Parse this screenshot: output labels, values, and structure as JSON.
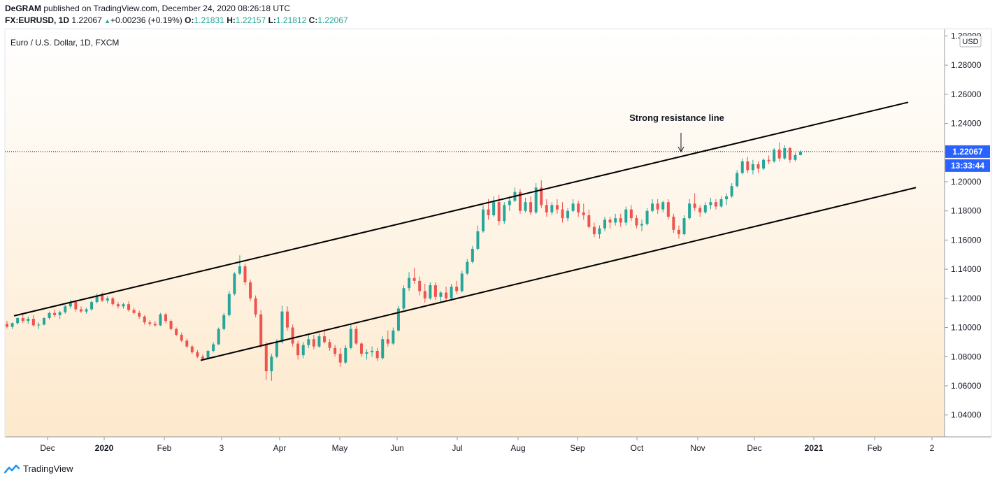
{
  "header": {
    "author": "DeGRAM",
    "published": "published on TradingView.com, December 24, 2020 08:26:18 UTC",
    "symbol": "FX:EURUSD, 1D",
    "last": "1.22067",
    "change_arrow": "▲",
    "change": "+0.00236 (+0.19%)",
    "o_label": "O:",
    "o_value": "1.21831",
    "h_label": "H:",
    "h_value": "1.22157",
    "l_label": "L:",
    "l_value": "1.21812",
    "c_label": "C:",
    "c_value": "1.22067"
  },
  "footer": {
    "brand": "TradingView",
    "logo_icon": "tradingview-logo-icon"
  },
  "colors": {
    "up": "#26a69a",
    "down": "#ef5350",
    "line": "#000000",
    "price_badge": "#2962ff"
  },
  "chart_data": {
    "type": "candlestick",
    "title": "Euro / U.S. Dollar, 1D, FXCM",
    "currency_label": "USD",
    "ylim": [
      1.025,
      1.305
    ],
    "y_ticks": [
      "1.30000",
      "1.28000",
      "1.26000",
      "1.24000",
      "1.22000",
      "1.20000",
      "1.18000",
      "1.16000",
      "1.14000",
      "1.12000",
      "1.10000",
      "1.08000",
      "1.06000",
      "1.04000"
    ],
    "x_ticks": [
      "Dec",
      "2020",
      "Feb",
      "3",
      "Apr",
      "May",
      "Jun",
      "Jul",
      "Aug",
      "Sep",
      "Oct",
      "Nov",
      "Dec",
      "2021",
      "Feb",
      "2"
    ],
    "last_price": 1.22067,
    "last_price_label": "1.22067",
    "countdown_label": "13:33:44",
    "series": [
      {
        "type": "candles",
        "values": [
          [
            1.1025,
            1.1045,
            1.0995,
            1.1005
          ],
          [
            1.1005,
            1.1035,
            1.099,
            1.103
          ],
          [
            1.103,
            1.107,
            1.102,
            1.1065
          ],
          [
            1.1065,
            1.109,
            1.103,
            1.1045
          ],
          [
            1.1045,
            1.1075,
            1.1025,
            1.106
          ],
          [
            1.106,
            1.1085,
            1.1005,
            1.1015
          ],
          [
            1.1015,
            1.1035,
            1.099,
            1.102
          ],
          [
            1.102,
            1.107,
            1.1015,
            1.1065
          ],
          [
            1.1065,
            1.111,
            1.1055,
            1.11
          ],
          [
            1.11,
            1.1125,
            1.107,
            1.1085
          ],
          [
            1.1085,
            1.1115,
            1.106,
            1.1105
          ],
          [
            1.1105,
            1.1155,
            1.1095,
            1.1145
          ],
          [
            1.1145,
            1.119,
            1.113,
            1.1175
          ],
          [
            1.1175,
            1.1185,
            1.111,
            1.1125
          ],
          [
            1.1125,
            1.1145,
            1.11,
            1.111
          ],
          [
            1.111,
            1.1135,
            1.1095,
            1.1125
          ],
          [
            1.1125,
            1.1185,
            1.1115,
            1.1175
          ],
          [
            1.1175,
            1.1235,
            1.1165,
            1.122
          ],
          [
            1.122,
            1.124,
            1.1175,
            1.1185
          ],
          [
            1.1185,
            1.1215,
            1.1165,
            1.12
          ],
          [
            1.12,
            1.121,
            1.115,
            1.116
          ],
          [
            1.116,
            1.1175,
            1.113,
            1.1145
          ],
          [
            1.1145,
            1.117,
            1.113,
            1.116
          ],
          [
            1.116,
            1.118,
            1.111,
            1.112
          ],
          [
            1.112,
            1.1135,
            1.109,
            1.11
          ],
          [
            1.11,
            1.1115,
            1.106,
            1.1075
          ],
          [
            1.1075,
            1.1085,
            1.102,
            1.1035
          ],
          [
            1.1035,
            1.105,
            1.101,
            1.1025
          ],
          [
            1.1025,
            1.1045,
            1.1005,
            1.1015
          ],
          [
            1.1015,
            1.11,
            1.101,
            1.109
          ],
          [
            1.109,
            1.11,
            1.103,
            1.1045
          ],
          [
            1.1045,
            1.1055,
            1.098,
            1.099
          ],
          [
            1.099,
            1.1,
            1.094,
            1.095
          ],
          [
            1.095,
            1.0965,
            1.09,
            1.091
          ],
          [
            1.091,
            1.0925,
            1.086,
            1.087
          ],
          [
            1.087,
            1.088,
            1.082,
            1.083
          ],
          [
            1.083,
            1.0845,
            1.079,
            1.08
          ],
          [
            1.08,
            1.0815,
            1.0775,
            1.0785
          ],
          [
            1.0785,
            1.0845,
            1.078,
            1.084
          ],
          [
            1.084,
            1.09,
            1.083,
            1.0885
          ],
          [
            1.0885,
            1.1,
            1.088,
            1.099
          ],
          [
            1.099,
            1.11,
            1.098,
            1.1085
          ],
          [
            1.1085,
            1.125,
            1.1075,
            1.123
          ],
          [
            1.123,
            1.138,
            1.122,
            1.137
          ],
          [
            1.137,
            1.1495,
            1.136,
            1.142
          ],
          [
            1.142,
            1.144,
            1.129,
            1.131
          ],
          [
            1.131,
            1.133,
            1.118,
            1.12
          ],
          [
            1.12,
            1.122,
            1.107,
            1.109
          ],
          [
            1.109,
            1.112,
            1.086,
            1.088
          ],
          [
            1.088,
            1.09,
            1.064,
            1.07
          ],
          [
            1.07,
            1.082,
            1.0635,
            1.08
          ],
          [
            1.08,
            1.092,
            1.079,
            1.09
          ],
          [
            1.09,
            1.115,
            1.089,
            1.111
          ],
          [
            1.111,
            1.1145,
            1.098,
            1.1
          ],
          [
            1.1,
            1.102,
            1.087,
            1.089
          ],
          [
            1.089,
            1.091,
            1.078,
            1.081
          ],
          [
            1.081,
            1.09,
            1.079,
            1.088
          ],
          [
            1.088,
            1.096,
            1.086,
            1.092
          ],
          [
            1.092,
            1.095,
            1.085,
            1.087
          ],
          [
            1.087,
            1.096,
            1.086,
            1.094
          ],
          [
            1.094,
            1.099,
            1.089,
            1.09
          ],
          [
            1.09,
            1.092,
            1.084,
            1.086
          ],
          [
            1.086,
            1.088,
            1.08,
            1.082
          ],
          [
            1.082,
            1.086,
            1.073,
            1.076
          ],
          [
            1.076,
            1.088,
            1.075,
            1.086
          ],
          [
            1.086,
            1.102,
            1.085,
            1.099
          ],
          [
            1.099,
            1.101,
            1.088,
            1.089
          ],
          [
            1.089,
            1.09,
            1.08,
            1.082
          ],
          [
            1.082,
            1.085,
            1.078,
            1.083
          ],
          [
            1.083,
            1.087,
            1.08,
            1.084
          ],
          [
            1.084,
            1.086,
            1.077,
            1.079
          ],
          [
            1.079,
            1.094,
            1.078,
            1.092
          ],
          [
            1.092,
            1.098,
            1.087,
            1.089
          ],
          [
            1.089,
            1.1,
            1.088,
            1.098
          ],
          [
            1.098,
            1.115,
            1.097,
            1.113
          ],
          [
            1.113,
            1.129,
            1.112,
            1.127
          ],
          [
            1.127,
            1.138,
            1.125,
            1.134
          ],
          [
            1.134,
            1.141,
            1.13,
            1.132
          ],
          [
            1.132,
            1.135,
            1.122,
            1.125
          ],
          [
            1.125,
            1.13,
            1.117,
            1.12
          ],
          [
            1.12,
            1.131,
            1.119,
            1.129
          ],
          [
            1.129,
            1.131,
            1.119,
            1.121
          ],
          [
            1.121,
            1.125,
            1.117,
            1.124
          ],
          [
            1.124,
            1.128,
            1.118,
            1.12
          ],
          [
            1.12,
            1.13,
            1.119,
            1.128
          ],
          [
            1.128,
            1.132,
            1.123,
            1.125
          ],
          [
            1.125,
            1.139,
            1.124,
            1.137
          ],
          [
            1.137,
            1.147,
            1.136,
            1.145
          ],
          [
            1.145,
            1.156,
            1.144,
            1.154
          ],
          [
            1.154,
            1.17,
            1.153,
            1.166
          ],
          [
            1.166,
            1.184,
            1.165,
            1.181
          ],
          [
            1.181,
            1.188,
            1.174,
            1.177
          ],
          [
            1.177,
            1.19,
            1.176,
            1.186
          ],
          [
            1.186,
            1.191,
            1.17,
            1.173
          ],
          [
            1.173,
            1.186,
            1.171,
            1.184
          ],
          [
            1.184,
            1.19,
            1.18,
            1.187
          ],
          [
            1.187,
            1.196,
            1.186,
            1.193
          ],
          [
            1.193,
            1.195,
            1.178,
            1.18
          ],
          [
            1.18,
            1.189,
            1.179,
            1.186
          ],
          [
            1.186,
            1.19,
            1.177,
            1.179
          ],
          [
            1.179,
            1.199,
            1.178,
            1.196
          ],
          [
            1.196,
            1.201,
            1.182,
            1.184
          ],
          [
            1.184,
            1.188,
            1.176,
            1.179
          ],
          [
            1.179,
            1.186,
            1.177,
            1.184
          ],
          [
            1.184,
            1.188,
            1.178,
            1.181
          ],
          [
            1.181,
            1.186,
            1.172,
            1.175
          ],
          [
            1.175,
            1.182,
            1.173,
            1.18
          ],
          [
            1.18,
            1.188,
            1.179,
            1.185
          ],
          [
            1.185,
            1.187,
            1.176,
            1.179
          ],
          [
            1.179,
            1.185,
            1.174,
            1.177
          ],
          [
            1.177,
            1.181,
            1.168,
            1.169
          ],
          [
            1.169,
            1.172,
            1.162,
            1.164
          ],
          [
            1.164,
            1.17,
            1.161,
            1.168
          ],
          [
            1.168,
            1.176,
            1.166,
            1.174
          ],
          [
            1.174,
            1.176,
            1.168,
            1.172
          ],
          [
            1.172,
            1.178,
            1.17,
            1.175
          ],
          [
            1.175,
            1.178,
            1.169,
            1.172
          ],
          [
            1.172,
            1.183,
            1.17,
            1.181
          ],
          [
            1.181,
            1.184,
            1.173,
            1.175
          ],
          [
            1.175,
            1.177,
            1.168,
            1.17
          ],
          [
            1.17,
            1.174,
            1.166,
            1.171
          ],
          [
            1.171,
            1.182,
            1.17,
            1.18
          ],
          [
            1.18,
            1.188,
            1.179,
            1.185
          ],
          [
            1.185,
            1.188,
            1.178,
            1.181
          ],
          [
            1.181,
            1.187,
            1.179,
            1.186
          ],
          [
            1.186,
            1.188,
            1.174,
            1.176
          ],
          [
            1.176,
            1.178,
            1.165,
            1.167
          ],
          [
            1.167,
            1.17,
            1.161,
            1.164
          ],
          [
            1.164,
            1.177,
            1.163,
            1.175
          ],
          [
            1.175,
            1.188,
            1.174,
            1.185
          ],
          [
            1.185,
            1.192,
            1.18,
            1.182
          ],
          [
            1.182,
            1.184,
            1.176,
            1.179
          ],
          [
            1.179,
            1.186,
            1.178,
            1.184
          ],
          [
            1.184,
            1.189,
            1.181,
            1.186
          ],
          [
            1.186,
            1.188,
            1.181,
            1.183
          ],
          [
            1.183,
            1.19,
            1.182,
            1.188
          ],
          [
            1.188,
            1.192,
            1.184,
            1.19
          ],
          [
            1.19,
            1.199,
            1.189,
            1.197
          ],
          [
            1.197,
            1.208,
            1.196,
            1.206
          ],
          [
            1.206,
            1.216,
            1.205,
            1.214
          ],
          [
            1.214,
            1.217,
            1.206,
            1.208
          ],
          [
            1.208,
            1.215,
            1.205,
            1.212
          ],
          [
            1.212,
            1.214,
            1.206,
            1.209
          ],
          [
            1.209,
            1.216,
            1.208,
            1.215
          ],
          [
            1.215,
            1.218,
            1.212,
            1.214
          ],
          [
            1.214,
            1.223,
            1.213,
            1.222
          ],
          [
            1.222,
            1.227,
            1.214,
            1.216
          ],
          [
            1.216,
            1.225,
            1.215,
            1.223
          ],
          [
            1.223,
            1.224,
            1.213,
            1.215
          ],
          [
            1.215,
            1.22,
            1.214,
            1.2183
          ],
          [
            1.21831,
            1.22157,
            1.21812,
            1.22067
          ]
        ]
      },
      {
        "type": "trendline",
        "points": [
          [
            "Nov 2019",
            1.108
          ],
          [
            "Dec 2020",
            1.2545
          ]
        ]
      },
      {
        "type": "trendline",
        "points": [
          [
            "Feb 2020",
            1.0775
          ],
          [
            "Dec 2020",
            1.196
          ]
        ]
      }
    ],
    "annotations": [
      {
        "text": "Strong resistance line",
        "arrow": "down"
      }
    ]
  }
}
